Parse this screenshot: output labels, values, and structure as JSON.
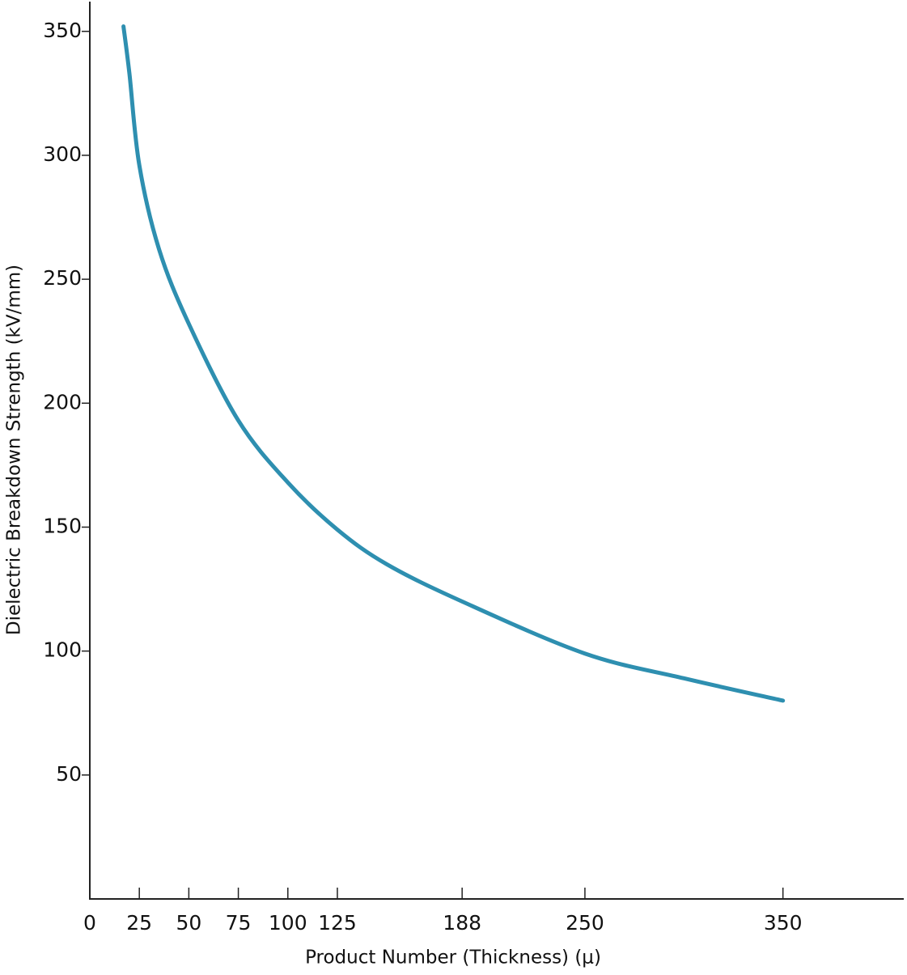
{
  "chart_data": {
    "type": "line",
    "x_label": "Product Number (Thickness) (μ)",
    "y_label": "Dielectric Breakdown Strength (kV/mm)",
    "x": [
      17,
      20,
      25,
      35,
      50,
      75,
      100,
      125,
      150,
      188,
      250,
      300,
      350
    ],
    "series": [
      {
        "name": "Dielectric Breakdown Strength",
        "color": "#2e8fb0",
        "values": [
          352,
          333,
          296,
          262,
          232,
          193,
          168,
          149,
          135,
          120,
          99,
          89,
          80
        ]
      }
    ],
    "xlim": [
      0,
      411
    ],
    "ylim": [
      0,
      362
    ],
    "xticks": [
      0,
      25,
      50,
      75,
      100,
      125,
      188,
      250,
      350
    ],
    "yticks": [
      50,
      100,
      150,
      200,
      250,
      300,
      350
    ],
    "grid": false
  }
}
